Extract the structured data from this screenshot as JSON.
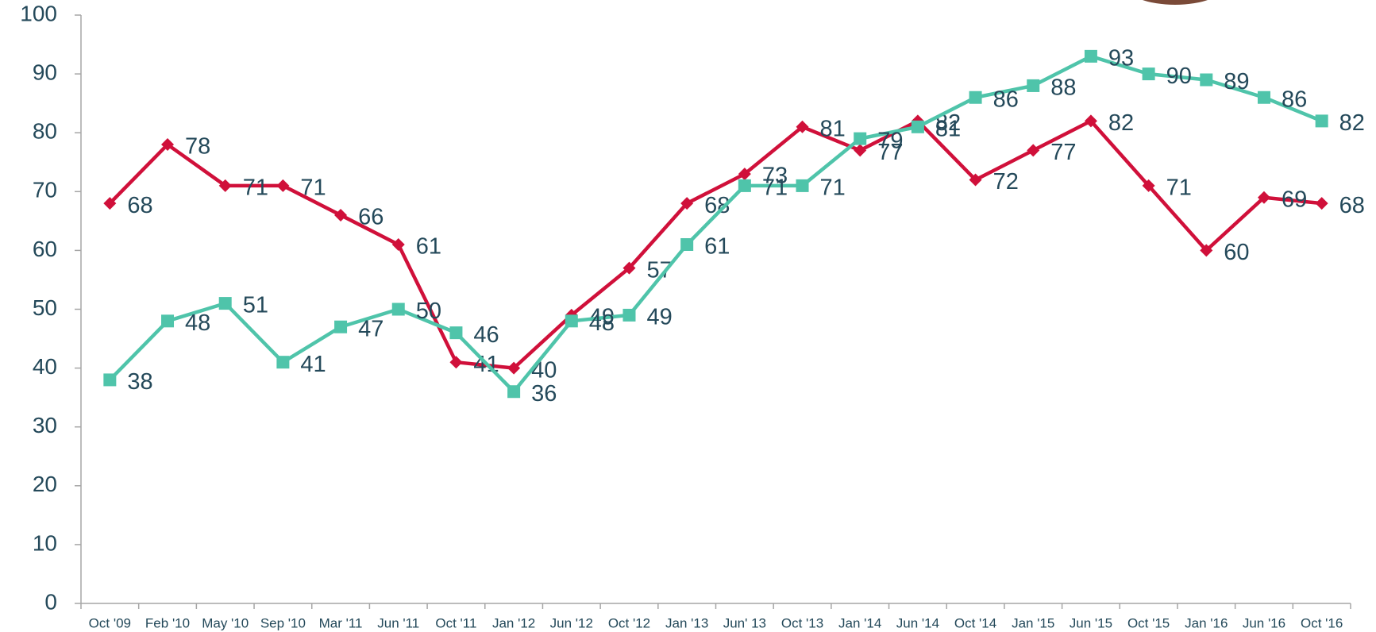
{
  "chart_data": {
    "type": "line",
    "categories": [
      "Oct '09",
      "Feb '10",
      "May '10",
      "Sep '10",
      "Mar '11",
      "Jun '11",
      "Oct '11",
      "Jan '12",
      "Jun '12",
      "Oct '12",
      "Jan '13",
      "Jun' 13",
      "Oct '13",
      "Jan '14",
      "Jun '14",
      "Oct '14",
      "Jan '15",
      "Jun '15",
      "Oct '15",
      "Jan '16",
      "Jun '16",
      "Oct '16"
    ],
    "series": [
      {
        "color": "#d0103a",
        "marker": "diamond",
        "values": [
          68,
          78,
          71,
          71,
          66,
          61,
          41,
          40,
          49,
          57,
          68,
          73,
          81,
          77,
          82,
          72,
          77,
          82,
          71,
          60,
          69,
          68
        ]
      },
      {
        "color": "#4fc4aa",
        "marker": "square",
        "values": [
          38,
          48,
          51,
          41,
          47,
          50,
          46,
          36,
          48,
          49,
          61,
          71,
          71,
          79,
          81,
          86,
          88,
          93,
          90,
          89,
          86,
          82
        ]
      }
    ],
    "ylim": [
      0,
      100
    ],
    "yticks": [
      0,
      10,
      20,
      30,
      40,
      50,
      60,
      70,
      80,
      90,
      100
    ],
    "grid": false
  }
}
